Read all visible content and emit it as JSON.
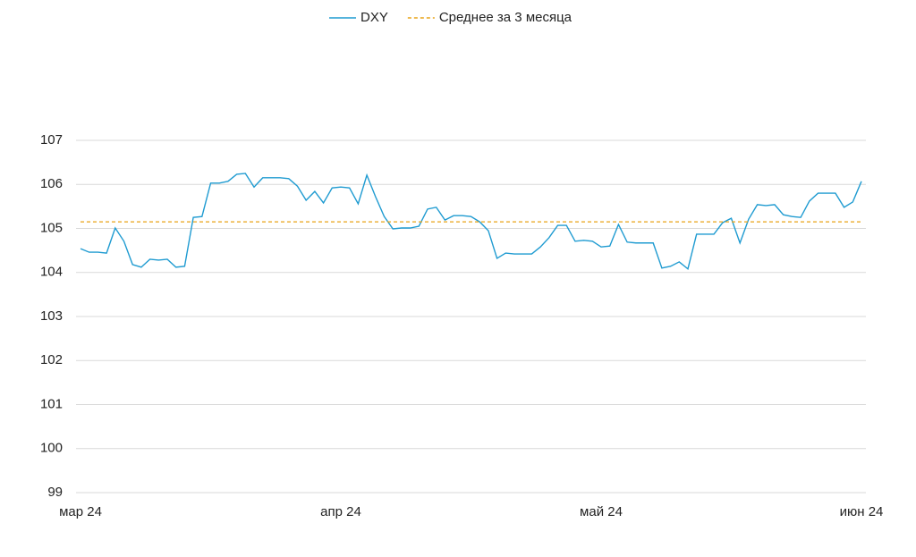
{
  "chart_data": {
    "type": "line",
    "categories": [
      "мар 24",
      null,
      null,
      null,
      null,
      null,
      null,
      null,
      null,
      null,
      null,
      null,
      null,
      null,
      null,
      null,
      null,
      null,
      null,
      null,
      null,
      null,
      null,
      null,
      null,
      null,
      null,
      null,
      null,
      null,
      "апр 24",
      null,
      null,
      null,
      null,
      null,
      null,
      null,
      null,
      null,
      null,
      null,
      null,
      null,
      null,
      null,
      null,
      null,
      null,
      null,
      null,
      null,
      null,
      null,
      null,
      null,
      null,
      null,
      null,
      null,
      "май 24",
      null,
      null,
      null,
      null,
      null,
      null,
      null,
      null,
      null,
      null,
      null,
      null,
      null,
      null,
      null,
      null,
      null,
      null,
      null,
      null,
      null,
      null,
      null,
      null,
      null,
      null,
      null,
      null,
      null,
      "июн 24"
    ],
    "series": [
      {
        "name": "DXY",
        "color": "#1f9bd1",
        "style": "solid",
        "values": [
          104.54,
          104.46,
          104.46,
          104.44,
          105.01,
          104.71,
          104.18,
          104.12,
          104.3,
          104.28,
          104.3,
          104.12,
          104.14,
          105.25,
          105.27,
          106.03,
          106.03,
          106.07,
          106.23,
          106.25,
          105.94,
          106.15,
          106.15,
          106.15,
          106.13,
          105.96,
          105.64,
          105.84,
          105.58,
          105.92,
          105.94,
          105.92,
          105.56,
          106.21,
          105.72,
          105.27,
          104.99,
          105.01,
          105.01,
          105.05,
          105.44,
          105.48,
          105.19,
          105.29,
          105.29,
          105.27,
          105.15,
          104.95,
          104.32,
          104.44,
          104.42,
          104.42,
          104.42,
          104.58,
          104.79,
          105.07,
          105.07,
          104.71,
          104.73,
          104.71,
          104.58,
          104.6,
          105.09,
          104.69,
          104.67,
          104.67,
          104.67,
          104.1,
          104.14,
          104.24,
          104.08,
          104.87,
          104.87,
          104.87,
          105.13,
          105.23,
          104.67,
          105.21,
          105.54,
          105.52,
          105.54,
          105.31,
          105.27,
          105.25,
          105.62,
          105.8,
          105.8,
          105.8,
          105.48,
          105.6,
          106.07
        ]
      },
      {
        "name": "Среднее за 3 месяца",
        "color": "#e8a317",
        "style": "dashed",
        "values": [
          105.15,
          105.15,
          105.15,
          105.15,
          105.15,
          105.15,
          105.15,
          105.15,
          105.15,
          105.15,
          105.15,
          105.15,
          105.15,
          105.15,
          105.15,
          105.15,
          105.15,
          105.15,
          105.15,
          105.15,
          105.15,
          105.15,
          105.15,
          105.15,
          105.15,
          105.15,
          105.15,
          105.15,
          105.15,
          105.15,
          105.15,
          105.15,
          105.15,
          105.15,
          105.15,
          105.15,
          105.15,
          105.15,
          105.15,
          105.15,
          105.15,
          105.15,
          105.15,
          105.15,
          105.15,
          105.15,
          105.15,
          105.15,
          105.15,
          105.15,
          105.15,
          105.15,
          105.15,
          105.15,
          105.15,
          105.15,
          105.15,
          105.15,
          105.15,
          105.15,
          105.15,
          105.15,
          105.15,
          105.15,
          105.15,
          105.15,
          105.15,
          105.15,
          105.15,
          105.15,
          105.15,
          105.15,
          105.15,
          105.15,
          105.15,
          105.15,
          105.15,
          105.15,
          105.15,
          105.15,
          105.15,
          105.15,
          105.15,
          105.15,
          105.15,
          105.15,
          105.15,
          105.15,
          105.15,
          105.15,
          105.15
        ]
      }
    ],
    "ylim": [
      99,
      107
    ],
    "yticks": [
      99,
      100,
      101,
      102,
      103,
      104,
      105,
      106,
      107
    ],
    "grid": true,
    "legend": "top"
  }
}
